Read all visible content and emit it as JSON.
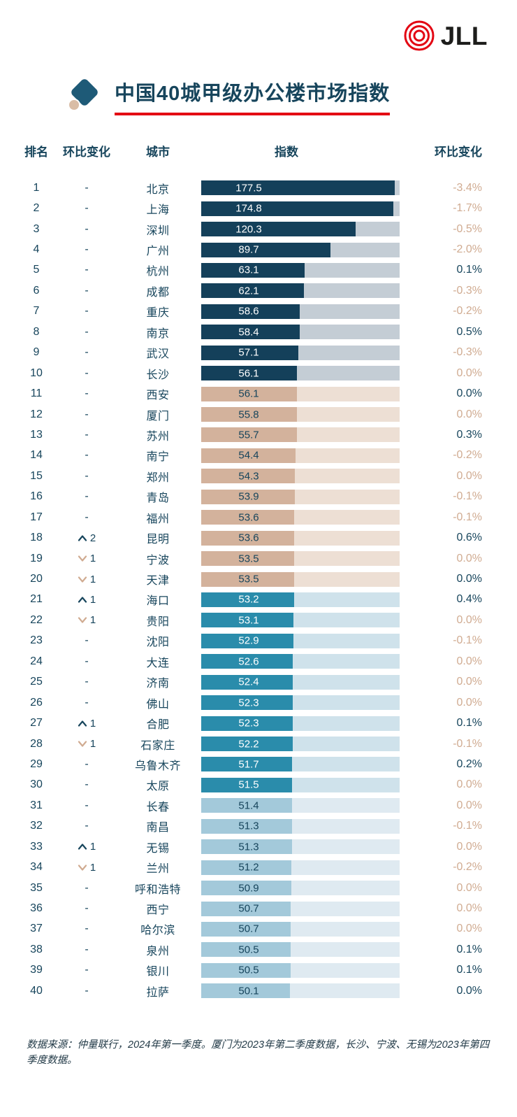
{
  "logo": {
    "text": "JLL"
  },
  "title": "中国40城甲级办公楼市场指数",
  "columns": {
    "rank": "排名",
    "rank_change": "环比变化",
    "city": "城市",
    "index": "指数",
    "pct_change": "环比变化"
  },
  "footnote": "数据来源：仲量联行，2024年第一季度。厦门为2023年第二季度数据，长沙、宁波、无锡为2023年第四季度数据。",
  "colors": {
    "red": "#e30613",
    "navy": "#17455c",
    "tan": "#d0ab91",
    "logo_text": "#1d1d1b",
    "tiers": {
      "t1": {
        "fill": "#14405a",
        "track": "#c4cdd5",
        "text": "#ffffff"
      },
      "t2": {
        "fill": "#d3b29c",
        "track": "#eddfd4",
        "text": "#17455c"
      },
      "t3": {
        "fill": "#2a8cab",
        "track": "#cfe2eb",
        "text": "#ffffff"
      },
      "t4": {
        "fill": "#a3c9da",
        "track": "#dfeaf1",
        "text": "#17455c"
      }
    }
  },
  "chart_data": {
    "type": "bar",
    "orientation": "horizontal",
    "title": "中国40城甲级办公楼市场指数",
    "xlabel": "指数",
    "value_range": [
      50,
      180
    ],
    "note": "rows grouped in tiers of 10 by color; bar length on compressed (sqrt-like) scale",
    "rows": [
      {
        "rank": 1,
        "move": null,
        "city": "北京",
        "value": 177.5,
        "change": "-3.4%",
        "change_tone": "tan",
        "tier": "t1"
      },
      {
        "rank": 2,
        "move": null,
        "city": "上海",
        "value": 174.8,
        "change": "-1.7%",
        "change_tone": "tan",
        "tier": "t1"
      },
      {
        "rank": 3,
        "move": null,
        "city": "深圳",
        "value": 120.3,
        "change": "-0.5%",
        "change_tone": "tan",
        "tier": "t1"
      },
      {
        "rank": 4,
        "move": null,
        "city": "广州",
        "value": 89.7,
        "change": "-2.0%",
        "change_tone": "tan",
        "tier": "t1"
      },
      {
        "rank": 5,
        "move": null,
        "city": "杭州",
        "value": 63.1,
        "change": "0.1%",
        "change_tone": "navy",
        "tier": "t1"
      },
      {
        "rank": 6,
        "move": null,
        "city": "成都",
        "value": 62.1,
        "change": "-0.3%",
        "change_tone": "tan",
        "tier": "t1"
      },
      {
        "rank": 7,
        "move": null,
        "city": "重庆",
        "value": 58.6,
        "change": "-0.2%",
        "change_tone": "tan",
        "tier": "t1"
      },
      {
        "rank": 8,
        "move": null,
        "city": "南京",
        "value": 58.4,
        "change": "0.5%",
        "change_tone": "navy",
        "tier": "t1"
      },
      {
        "rank": 9,
        "move": null,
        "city": "武汉",
        "value": 57.1,
        "change": "-0.3%",
        "change_tone": "tan",
        "tier": "t1"
      },
      {
        "rank": 10,
        "move": null,
        "city": "长沙",
        "value": 56.1,
        "change": "0.0%",
        "change_tone": "tan",
        "tier": "t1"
      },
      {
        "rank": 11,
        "move": null,
        "city": "西安",
        "value": 56.1,
        "change": "0.0%",
        "change_tone": "navy",
        "tier": "t2"
      },
      {
        "rank": 12,
        "move": null,
        "city": "厦门",
        "value": 55.8,
        "change": "0.0%",
        "change_tone": "tan",
        "tier": "t2"
      },
      {
        "rank": 13,
        "move": null,
        "city": "苏州",
        "value": 55.7,
        "change": "0.3%",
        "change_tone": "navy",
        "tier": "t2"
      },
      {
        "rank": 14,
        "move": null,
        "city": "南宁",
        "value": 54.4,
        "change": "-0.2%",
        "change_tone": "tan",
        "tier": "t2"
      },
      {
        "rank": 15,
        "move": null,
        "city": "郑州",
        "value": 54.3,
        "change": "0.0%",
        "change_tone": "tan",
        "tier": "t2"
      },
      {
        "rank": 16,
        "move": null,
        "city": "青岛",
        "value": 53.9,
        "change": "-0.1%",
        "change_tone": "tan",
        "tier": "t2"
      },
      {
        "rank": 17,
        "move": null,
        "city": "福州",
        "value": 53.6,
        "change": "-0.1%",
        "change_tone": "tan",
        "tier": "t2"
      },
      {
        "rank": 18,
        "move": {
          "dir": "up",
          "n": 2
        },
        "city": "昆明",
        "value": 53.6,
        "change": "0.6%",
        "change_tone": "navy",
        "tier": "t2"
      },
      {
        "rank": 19,
        "move": {
          "dir": "down",
          "n": 1
        },
        "city": "宁波",
        "value": 53.5,
        "change": "0.0%",
        "change_tone": "tan",
        "tier": "t2"
      },
      {
        "rank": 20,
        "move": {
          "dir": "down",
          "n": 1
        },
        "city": "天津",
        "value": 53.5,
        "change": "0.0%",
        "change_tone": "navy",
        "tier": "t2"
      },
      {
        "rank": 21,
        "move": {
          "dir": "up",
          "n": 1
        },
        "city": "海口",
        "value": 53.2,
        "change": "0.4%",
        "change_tone": "navy",
        "tier": "t3"
      },
      {
        "rank": 22,
        "move": {
          "dir": "down",
          "n": 1
        },
        "city": "贵阳",
        "value": 53.1,
        "change": "0.0%",
        "change_tone": "tan",
        "tier": "t3"
      },
      {
        "rank": 23,
        "move": null,
        "city": "沈阳",
        "value": 52.9,
        "change": "-0.1%",
        "change_tone": "tan",
        "tier": "t3"
      },
      {
        "rank": 24,
        "move": null,
        "city": "大连",
        "value": 52.6,
        "change": "0.0%",
        "change_tone": "tan",
        "tier": "t3"
      },
      {
        "rank": 25,
        "move": null,
        "city": "济南",
        "value": 52.4,
        "change": "0.0%",
        "change_tone": "tan",
        "tier": "t3"
      },
      {
        "rank": 26,
        "move": null,
        "city": "佛山",
        "value": 52.3,
        "change": "0.0%",
        "change_tone": "tan",
        "tier": "t3"
      },
      {
        "rank": 27,
        "move": {
          "dir": "up",
          "n": 1
        },
        "city": "合肥",
        "value": 52.3,
        "change": "0.1%",
        "change_tone": "navy",
        "tier": "t3"
      },
      {
        "rank": 28,
        "move": {
          "dir": "down",
          "n": 1
        },
        "city": "石家庄",
        "value": 52.2,
        "change": "-0.1%",
        "change_tone": "tan",
        "tier": "t3"
      },
      {
        "rank": 29,
        "move": null,
        "city": "乌鲁木齐",
        "value": 51.7,
        "change": "0.2%",
        "change_tone": "navy",
        "tier": "t3"
      },
      {
        "rank": 30,
        "move": null,
        "city": "太原",
        "value": 51.5,
        "change": "0.0%",
        "change_tone": "tan",
        "tier": "t3"
      },
      {
        "rank": 31,
        "move": null,
        "city": "长春",
        "value": 51.4,
        "change": "0.0%",
        "change_tone": "tan",
        "tier": "t4"
      },
      {
        "rank": 32,
        "move": null,
        "city": "南昌",
        "value": 51.3,
        "change": "-0.1%",
        "change_tone": "tan",
        "tier": "t4"
      },
      {
        "rank": 33,
        "move": {
          "dir": "up",
          "n": 1
        },
        "city": "无锡",
        "value": 51.3,
        "change": "0.0%",
        "change_tone": "tan",
        "tier": "t4"
      },
      {
        "rank": 34,
        "move": {
          "dir": "down",
          "n": 1
        },
        "city": "兰州",
        "value": 51.2,
        "change": "-0.2%",
        "change_tone": "tan",
        "tier": "t4"
      },
      {
        "rank": 35,
        "move": null,
        "city": "呼和浩特",
        "value": 50.9,
        "change": "0.0%",
        "change_tone": "tan",
        "tier": "t4"
      },
      {
        "rank": 36,
        "move": null,
        "city": "西宁",
        "value": 50.7,
        "change": "0.0%",
        "change_tone": "tan",
        "tier": "t4"
      },
      {
        "rank": 37,
        "move": null,
        "city": "哈尔滨",
        "value": 50.7,
        "change": "0.0%",
        "change_tone": "tan",
        "tier": "t4"
      },
      {
        "rank": 38,
        "move": null,
        "city": "泉州",
        "value": 50.5,
        "change": "0.1%",
        "change_tone": "navy",
        "tier": "t4"
      },
      {
        "rank": 39,
        "move": null,
        "city": "银川",
        "value": 50.5,
        "change": "0.1%",
        "change_tone": "navy",
        "tier": "t4"
      },
      {
        "rank": 40,
        "move": null,
        "city": "拉萨",
        "value": 50.1,
        "change": "0.0%",
        "change_tone": "navy",
        "tier": "t4"
      }
    ]
  }
}
